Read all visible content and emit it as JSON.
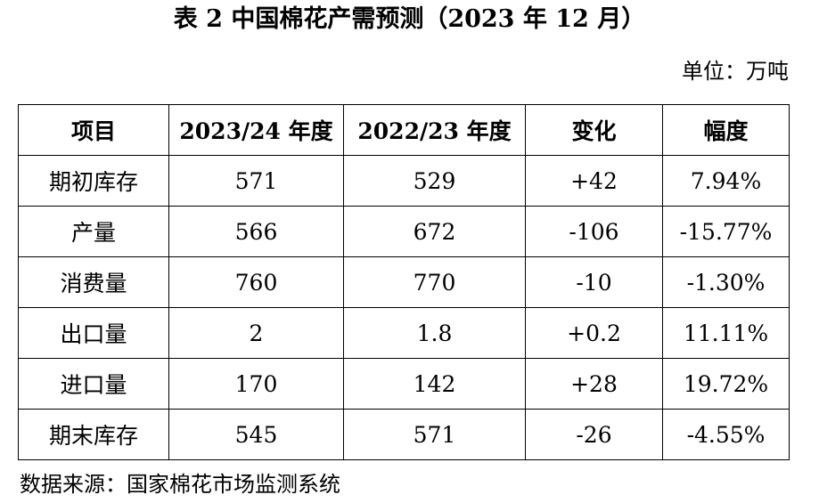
{
  "title": "表 2 中国棉花产需预测（2023 年 12 月）",
  "unit": "单位：万吨",
  "table": {
    "headers": [
      "项目",
      "2023/24 年度",
      "2022/23 年度",
      "变化",
      "幅度"
    ],
    "rows": [
      [
        "期初库存",
        "571",
        "529",
        "+42",
        "7.94%"
      ],
      [
        "产量",
        "566",
        "672",
        "-106",
        "-15.77%"
      ],
      [
        "消费量",
        "760",
        "770",
        "-10",
        "-1.30%"
      ],
      [
        "出口量",
        "2",
        "1.8",
        "+0.2",
        "11.11%"
      ],
      [
        "进口量",
        "170",
        "142",
        "+28",
        "19.72%"
      ],
      [
        "期末库存",
        "545",
        "571",
        "-26",
        "-4.55%"
      ]
    ]
  },
  "source": "数据来源：国家棉花市场监测系统"
}
